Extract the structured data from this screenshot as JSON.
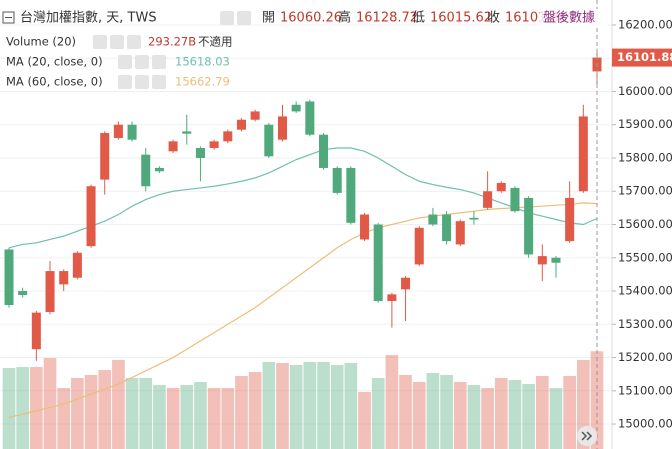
{
  "chart_data": {
    "type": "candlestick",
    "title": "台灣加權指數, 天, TWS",
    "ohlc_labels": [
      "開",
      "高",
      "低",
      "收"
    ],
    "after_hours_label": "盤後數據",
    "ylim": [
      14925,
      16275
    ],
    "yticks": [
      {
        "value": 15000,
        "label": "15000.00"
      },
      {
        "value": 15100,
        "label": "15100.00"
      },
      {
        "value": 15200,
        "label": "15200.00"
      },
      {
        "value": 15300,
        "label": "15300.00"
      },
      {
        "value": 15400,
        "label": "15400.00"
      },
      {
        "value": 15500,
        "label": "15500.00"
      },
      {
        "value": 15600,
        "label": "15600.00"
      },
      {
        "value": 15700,
        "label": "15700.00"
      },
      {
        "value": 15800,
        "label": "15800.00"
      },
      {
        "value": 15900,
        "label": "15900.00"
      },
      {
        "value": 16000,
        "label": "16000.00"
      },
      {
        "value": 16100,
        "label": "16100.00"
      },
      {
        "value": 16200,
        "label": "16200.00"
      }
    ],
    "grid": true,
    "up_color": "#e05a47",
    "down_color": "#4fa97b",
    "candles": {
      "open": [
        15525,
        15400,
        15225,
        15337,
        15420,
        15440,
        15535,
        15735,
        15860,
        15900,
        15810,
        15770,
        15820,
        15880,
        15830,
        15830,
        15850,
        15885,
        15915,
        15900,
        15855,
        15960,
        15970,
        15870,
        15770,
        15770,
        15555,
        15600,
        15370,
        15405,
        15480,
        15630,
        15630,
        15540,
        15620,
        15650,
        15700,
        15710,
        15680,
        15480,
        15500,
        15550,
        15700,
        16060.26
      ],
      "high": [
        15530,
        15410,
        15340,
        15490,
        15465,
        15520,
        15720,
        15880,
        15910,
        15910,
        15830,
        15775,
        15855,
        15930,
        15835,
        15855,
        15885,
        15920,
        15945,
        15905,
        15960,
        15970,
        15975,
        15875,
        15775,
        15775,
        15635,
        15605,
        15395,
        15445,
        15595,
        15650,
        15640,
        15615,
        15640,
        15760,
        15730,
        15715,
        15685,
        15540,
        15505,
        15730,
        15960,
        16128.72
      ],
      "low": [
        15350,
        15380,
        15190,
        15330,
        15400,
        15435,
        15530,
        15690,
        15855,
        15850,
        15700,
        15755,
        15815,
        15840,
        15730,
        15825,
        15845,
        15880,
        15910,
        15800,
        15850,
        15935,
        15865,
        15765,
        15690,
        15600,
        15550,
        15365,
        15290,
        15310,
        15475,
        15595,
        15540,
        15535,
        15600,
        15645,
        15695,
        15635,
        15500,
        15430,
        15440,
        15545,
        15695,
        16015.62
      ],
      "close": [
        15358,
        15388,
        15335,
        15460,
        15460,
        15515,
        15715,
        15875,
        15900,
        15855,
        15715,
        15760,
        15850,
        15873,
        15800,
        15850,
        15880,
        15915,
        15940,
        15805,
        15925,
        15940,
        15870,
        15770,
        15695,
        15605,
        15630,
        15370,
        15390,
        15440,
        15590,
        15600,
        15550,
        15610,
        15615,
        15700,
        15725,
        15640,
        15510,
        15505,
        15485,
        15680,
        15925,
        16101.88
      ]
    },
    "volume": {
      "name": "Volume (20)",
      "values": [
        243,
        246,
        246,
        273,
        183,
        213,
        222,
        237,
        267,
        213,
        213,
        192,
        183,
        192,
        201,
        183,
        183,
        219,
        231,
        261,
        258,
        252,
        261,
        261,
        252,
        258,
        171,
        213,
        282,
        222,
        201,
        228,
        222,
        201,
        192,
        183,
        213,
        207,
        195,
        219,
        183,
        219,
        267,
        293.27
      ],
      "legend_value_label": "293.27B",
      "note_label": "不適用",
      "lim": [
        0,
        300
      ]
    },
    "ma": [
      {
        "name": "MA (20, close, 0)",
        "color": "#6cc0b0",
        "values": [
          15530,
          15540,
          15545,
          15555,
          15565,
          15580,
          15595,
          15610,
          15630,
          15655,
          15675,
          15690,
          15700,
          15705,
          15710,
          15715,
          15722,
          15730,
          15740,
          15755,
          15775,
          15795,
          15810,
          15825,
          15830,
          15830,
          15820,
          15800,
          15775,
          15750,
          15730,
          15720,
          15712,
          15705,
          15695,
          15680,
          15665,
          15650,
          15635,
          15625,
          15615,
          15605,
          15600,
          15618.03
        ]
      },
      {
        "name": "MA (60, close, 0)",
        "color": "#ebbd7a",
        "values": [
          15020,
          15030,
          15040,
          15050,
          15060,
          15075,
          15090,
          15105,
          15120,
          15140,
          15160,
          15180,
          15200,
          15225,
          15250,
          15275,
          15300,
          15325,
          15350,
          15380,
          15410,
          15440,
          15470,
          15500,
          15530,
          15555,
          15575,
          15590,
          15600,
          15610,
          15620,
          15625,
          15630,
          15635,
          15640,
          15645,
          15648,
          15650,
          15653,
          15655,
          15658,
          15660,
          15665,
          15662.79
        ]
      }
    ]
  }
}
